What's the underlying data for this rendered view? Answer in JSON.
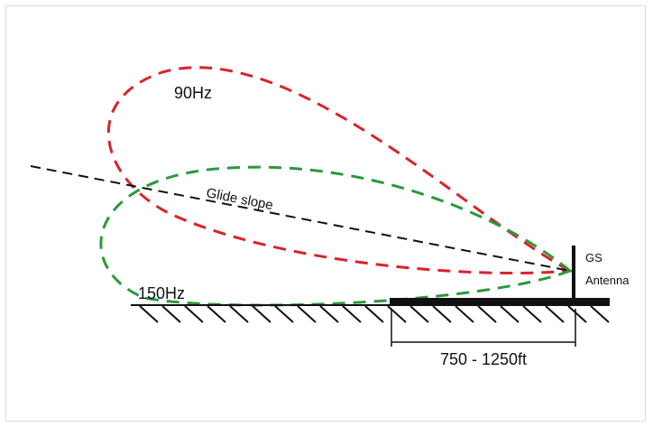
{
  "diagram": {
    "labels": {
      "lobe_90": "90Hz",
      "lobe_150": "150Hz",
      "glide_slope": "Glide slope",
      "antenna_line1": "GS",
      "antenna_line2": "Antenna",
      "distance": "750 - 1250ft"
    },
    "colors": {
      "lobe_90": "#d9232a",
      "lobe_150": "#2a9a3d",
      "glide_slope": "#111111",
      "ground": "#111111"
    }
  }
}
